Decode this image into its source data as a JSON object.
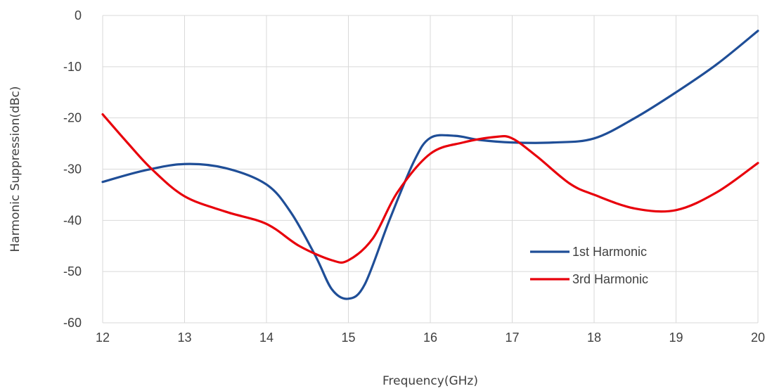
{
  "chart_data": {
    "type": "line",
    "xlabel": "Frequency(GHz)",
    "ylabel": "Harmonic Suppression(dBc)",
    "xlim": [
      12,
      20
    ],
    "ylim": [
      -60,
      0
    ],
    "x_ticks": [
      12,
      13,
      14,
      15,
      16,
      17,
      18,
      19,
      20
    ],
    "y_ticks": [
      0,
      -10,
      -20,
      -30,
      -40,
      -50,
      -60
    ],
    "grid": true,
    "legend_position": "bottom-right",
    "series": [
      {
        "name": "1st Harmonic",
        "color": "#1f4e97",
        "x": [
          12,
          12.5,
          13,
          13.5,
          14,
          14.3,
          14.6,
          14.8,
          15,
          15.2,
          15.5,
          15.8,
          16,
          16.3,
          16.6,
          17,
          17.5,
          18,
          18.5,
          19,
          19.5,
          20
        ],
        "y": [
          -32.5,
          -30.3,
          -29.0,
          -29.8,
          -33.0,
          -38.5,
          -47.0,
          -53.5,
          -55.3,
          -52.5,
          -40.0,
          -28.5,
          -23.9,
          -23.5,
          -24.3,
          -24.8,
          -24.8,
          -24.0,
          -20.0,
          -15.0,
          -9.5,
          -3.0
        ]
      },
      {
        "name": "3rd Harmonic",
        "color": "#e8000b",
        "x": [
          12,
          12.3,
          12.6,
          13,
          13.5,
          14,
          14.4,
          14.8,
          15,
          15.3,
          15.6,
          16,
          16.4,
          16.8,
          17,
          17.3,
          17.7,
          18,
          18.5,
          19,
          19.5,
          20
        ],
        "y": [
          -19.3,
          -24.8,
          -30.0,
          -35.3,
          -38.3,
          -40.7,
          -45.0,
          -47.8,
          -47.8,
          -43.5,
          -34.5,
          -27.0,
          -24.8,
          -23.7,
          -24.0,
          -27.5,
          -32.8,
          -35.0,
          -37.7,
          -38.0,
          -34.5,
          -28.8
        ]
      }
    ]
  }
}
